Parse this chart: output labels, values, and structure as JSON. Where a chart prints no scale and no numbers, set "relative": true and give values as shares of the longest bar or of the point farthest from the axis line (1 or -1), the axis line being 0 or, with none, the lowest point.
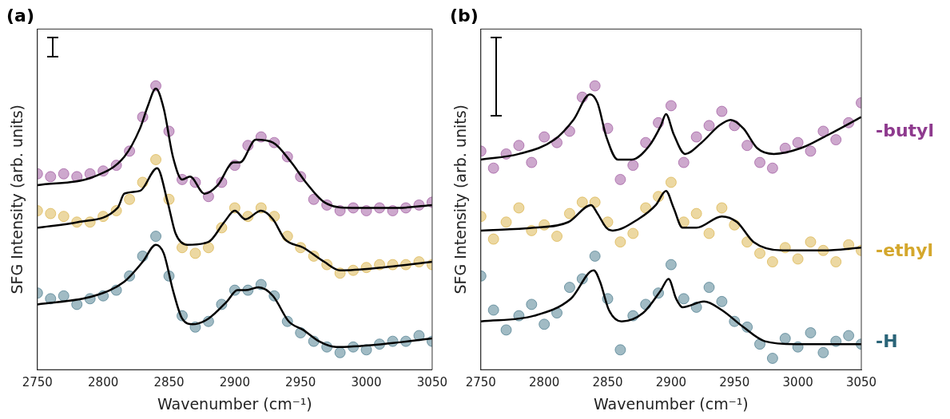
{
  "chart_data": [
    {
      "type": "scatter",
      "title": "(a)",
      "xlabel": "Wavenumber (cm⁻¹)",
      "ylabel": "SFG Intensity (arb. units)",
      "relative": true,
      "legend": false,
      "xlim": [
        2750,
        3050
      ],
      "xticks": [
        2750,
        2800,
        2850,
        2900,
        2950,
        3000,
        3050
      ],
      "series": [
        {
          "type": "scatter",
          "marker": "circle",
          "color": "#8e3a8e",
          "x": [
            2750,
            2760,
            2770,
            2780,
            2790,
            2800,
            2810,
            2820,
            2830,
            2840,
            2850,
            2860,
            2870,
            2880,
            2890,
            2900,
            2910,
            2920,
            2930,
            2940,
            2950,
            2960,
            2970,
            2980,
            2990,
            3000,
            3010,
            3020,
            3030,
            3040,
            3050
          ],
          "values": [
            0.69,
            0.68,
            0.69,
            0.68,
            0.69,
            0.7,
            0.72,
            0.77,
            0.89,
            1.0,
            0.84,
            0.67,
            0.66,
            0.61,
            0.66,
            0.72,
            0.79,
            0.82,
            0.8,
            0.75,
            0.68,
            0.6,
            0.58,
            0.56,
            0.57,
            0.56,
            0.57,
            0.56,
            0.57,
            0.58,
            0.59
          ]
        },
        {
          "type": "scatter",
          "marker": "circle",
          "color": "#d4a72c",
          "x": [
            2750,
            2760,
            2770,
            2780,
            2790,
            2800,
            2810,
            2820,
            2830,
            2840,
            2850,
            2860,
            2870,
            2880,
            2890,
            2900,
            2910,
            2920,
            2930,
            2940,
            2950,
            2960,
            2970,
            2980,
            2990,
            3000,
            3010,
            3020,
            3030,
            3040,
            3050
          ],
          "values": [
            0.56,
            0.55,
            0.54,
            0.52,
            0.52,
            0.54,
            0.56,
            0.6,
            0.66,
            0.74,
            0.6,
            0.43,
            0.41,
            0.43,
            0.5,
            0.57,
            0.54,
            0.57,
            0.54,
            0.47,
            0.43,
            0.4,
            0.37,
            0.34,
            0.35,
            0.36,
            0.37,
            0.37,
            0.37,
            0.38,
            0.37
          ]
        },
        {
          "type": "scatter",
          "marker": "circle",
          "color": "#2a6478",
          "x": [
            2750,
            2760,
            2770,
            2780,
            2790,
            2800,
            2810,
            2820,
            2830,
            2840,
            2850,
            2860,
            2870,
            2880,
            2890,
            2900,
            2910,
            2920,
            2930,
            2940,
            2950,
            2960,
            2970,
            2980,
            2990,
            3000,
            3010,
            3020,
            3030,
            3040,
            3050
          ],
          "values": [
            0.27,
            0.25,
            0.26,
            0.23,
            0.25,
            0.26,
            0.28,
            0.33,
            0.4,
            0.47,
            0.33,
            0.19,
            0.15,
            0.17,
            0.23,
            0.28,
            0.28,
            0.3,
            0.26,
            0.17,
            0.13,
            0.1,
            0.08,
            0.06,
            0.08,
            0.07,
            0.09,
            0.1,
            0.1,
            0.12,
            0.1
          ]
        },
        {
          "type": "line",
          "marker": "none",
          "color": "#000000",
          "x": [
            2750,
            2793,
            2816,
            2828,
            2834,
            2840,
            2846,
            2853,
            2860,
            2866,
            2877,
            2887,
            2899,
            2904,
            2916,
            2929,
            2943,
            2954,
            2968,
            2989,
            3024,
            3050
          ],
          "values": [
            0.65,
            0.68,
            0.75,
            0.85,
            0.93,
            0.99,
            0.92,
            0.75,
            0.67,
            0.68,
            0.62,
            0.65,
            0.73,
            0.73,
            0.81,
            0.8,
            0.73,
            0.66,
            0.59,
            0.57,
            0.57,
            0.58
          ]
        },
        {
          "type": "line",
          "marker": "none",
          "color": "#000000",
          "x": [
            2750,
            2781,
            2811,
            2816,
            2828,
            2841,
            2849,
            2855,
            2864,
            2880,
            2892,
            2900,
            2908,
            2920,
            2929,
            2938,
            2952,
            2968,
            2980,
            3012,
            3050
          ],
          "values": [
            0.5,
            0.52,
            0.57,
            0.62,
            0.63,
            0.71,
            0.59,
            0.48,
            0.44,
            0.45,
            0.52,
            0.56,
            0.53,
            0.56,
            0.53,
            0.46,
            0.43,
            0.38,
            0.35,
            0.36,
            0.38
          ]
        },
        {
          "type": "line",
          "marker": "none",
          "color": "#000000",
          "x": [
            2750,
            2793,
            2816,
            2830,
            2840,
            2846,
            2853,
            2860,
            2868,
            2880,
            2894,
            2902,
            2908,
            2918,
            2929,
            2941,
            2952,
            2964,
            2977,
            3012,
            3050
          ],
          "values": [
            0.23,
            0.26,
            0.31,
            0.38,
            0.44,
            0.41,
            0.28,
            0.18,
            0.16,
            0.18,
            0.24,
            0.28,
            0.28,
            0.29,
            0.26,
            0.17,
            0.14,
            0.1,
            0.08,
            0.09,
            0.11
          ]
        }
      ]
    },
    {
      "type": "scatter",
      "title": "(b)",
      "xlabel": "Wavenumber (cm⁻¹)",
      "ylabel": "SFG Intensity (arb. units)",
      "relative": true,
      "legend": false,
      "xlim": [
        2750,
        3050
      ],
      "xticks": [
        2750,
        2800,
        2850,
        2900,
        2950,
        3000,
        3050
      ],
      "series": [
        {
          "type": "scatter",
          "marker": "circle",
          "name": "-butyl",
          "color": "#8e3a8e",
          "x": [
            2750,
            2760,
            2770,
            2780,
            2790,
            2800,
            2810,
            2820,
            2830,
            2840,
            2850,
            2860,
            2870,
            2880,
            2890,
            2900,
            2910,
            2920,
            2930,
            2940,
            2950,
            2960,
            2970,
            2980,
            2990,
            3000,
            3010,
            3020,
            3030,
            3040,
            3050
          ],
          "values": [
            0.77,
            0.71,
            0.76,
            0.79,
            0.73,
            0.82,
            0.8,
            0.84,
            0.96,
            1.0,
            0.85,
            0.67,
            0.72,
            0.8,
            0.87,
            0.93,
            0.73,
            0.82,
            0.86,
            0.91,
            0.86,
            0.79,
            0.73,
            0.71,
            0.78,
            0.8,
            0.77,
            0.84,
            0.81,
            0.87,
            0.94
          ]
        },
        {
          "type": "scatter",
          "marker": "circle",
          "name": "-ethyl",
          "color": "#d4a72c",
          "x": [
            2750,
            2760,
            2770,
            2780,
            2790,
            2800,
            2810,
            2820,
            2830,
            2840,
            2850,
            2860,
            2870,
            2880,
            2890,
            2900,
            2910,
            2920,
            2930,
            2940,
            2950,
            2960,
            2970,
            2980,
            2990,
            3000,
            3010,
            3020,
            3030,
            3040,
            3050
          ],
          "values": [
            0.54,
            0.46,
            0.52,
            0.57,
            0.49,
            0.51,
            0.47,
            0.55,
            0.59,
            0.59,
            0.52,
            0.45,
            0.48,
            0.57,
            0.61,
            0.66,
            0.52,
            0.55,
            0.48,
            0.57,
            0.51,
            0.45,
            0.41,
            0.38,
            0.43,
            0.39,
            0.45,
            0.42,
            0.38,
            0.44,
            0.42
          ]
        },
        {
          "type": "scatter",
          "marker": "circle",
          "name": "-H",
          "color": "#2a6478",
          "x": [
            2750,
            2760,
            2770,
            2780,
            2790,
            2800,
            2810,
            2820,
            2830,
            2840,
            2850,
            2860,
            2870,
            2880,
            2890,
            2900,
            2910,
            2920,
            2930,
            2940,
            2950,
            2960,
            2970,
            2980,
            2990,
            3000,
            3010,
            3020,
            3030,
            3040,
            3050
          ],
          "values": [
            0.33,
            0.21,
            0.14,
            0.19,
            0.23,
            0.16,
            0.2,
            0.29,
            0.32,
            0.4,
            0.25,
            0.07,
            0.19,
            0.23,
            0.27,
            0.37,
            0.25,
            0.22,
            0.29,
            0.24,
            0.17,
            0.15,
            0.09,
            0.04,
            0.11,
            0.08,
            0.13,
            0.06,
            0.1,
            0.12,
            0.09
          ]
        },
        {
          "type": "line",
          "marker": "none",
          "color": "#000000",
          "x": [
            2750,
            2780,
            2808,
            2823,
            2836,
            2842,
            2849,
            2858,
            2869,
            2883,
            2892,
            2896,
            2902,
            2911,
            2924,
            2938,
            2947,
            2957,
            2968,
            2981,
            3002,
            3025,
            3050
          ],
          "values": [
            0.74,
            0.76,
            0.81,
            0.88,
            0.97,
            0.94,
            0.82,
            0.74,
            0.74,
            0.79,
            0.86,
            0.9,
            0.83,
            0.76,
            0.8,
            0.86,
            0.88,
            0.85,
            0.78,
            0.76,
            0.78,
            0.83,
            0.89
          ]
        },
        {
          "type": "line",
          "marker": "none",
          "color": "#000000",
          "x": [
            2750,
            2792,
            2819,
            2837,
            2842,
            2849,
            2854,
            2874,
            2888,
            2896,
            2902,
            2909,
            2920,
            2940,
            2952,
            2965,
            2988,
            3020,
            3050
          ],
          "values": [
            0.49,
            0.5,
            0.52,
            0.58,
            0.55,
            0.5,
            0.49,
            0.53,
            0.58,
            0.63,
            0.57,
            0.5,
            0.5,
            0.54,
            0.52,
            0.45,
            0.42,
            0.42,
            0.43
          ]
        },
        {
          "type": "line",
          "marker": "none",
          "color": "#000000",
          "x": [
            2750,
            2792,
            2821,
            2839,
            2844,
            2851,
            2861,
            2878,
            2892,
            2898,
            2904,
            2909,
            2926,
            2940,
            2957,
            2974,
            2998,
            3050
          ],
          "values": [
            0.17,
            0.19,
            0.25,
            0.35,
            0.31,
            0.21,
            0.17,
            0.2,
            0.28,
            0.32,
            0.25,
            0.22,
            0.24,
            0.21,
            0.15,
            0.1,
            0.09,
            0.09
          ]
        }
      ]
    }
  ]
}
